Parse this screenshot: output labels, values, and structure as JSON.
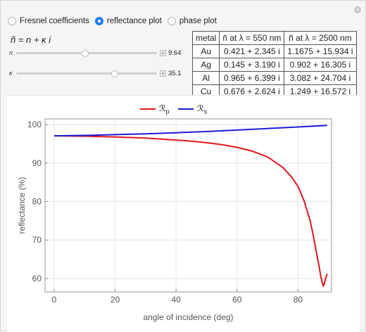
{
  "controls": {
    "radios": [
      {
        "label": "Fresnel coefficients",
        "selected": false
      },
      {
        "label": "reflectance plot",
        "selected": true
      },
      {
        "label": "phase plot",
        "selected": false
      }
    ],
    "reset_symbol": "+"
  },
  "formula": {
    "text": "ñ = n + κ i"
  },
  "sliders": [
    {
      "label": "n",
      "value_text": "9.64",
      "fraction": 0.49
    },
    {
      "label": "κ",
      "value_text": "35.1",
      "fraction": 0.7
    }
  ],
  "table": {
    "headers": [
      "metal",
      "ñ at λ = 550 nm",
      "ñ at λ = 2500 nm"
    ],
    "rows": [
      [
        "Au",
        "0.421 + 2.345 i",
        "1.1675 + 15.934 i"
      ],
      [
        "Ag",
        "0.145 + 3.190 i",
        "0.902 + 16.305 i"
      ],
      [
        "Al",
        "0.965 + 6.399 i",
        "3.082 + 24.704 i"
      ],
      [
        "Cu",
        "0.676 + 2.624 i",
        "1.249 + 16.572 i"
      ]
    ]
  },
  "legend": {
    "p": {
      "label": "ℛ",
      "sub": "p",
      "color": "#e3161d"
    },
    "s": {
      "label": "ℛ",
      "sub": "s",
      "color": "#1c1cd6"
    }
  },
  "chart_data": {
    "type": "line",
    "xlabel": "angle of incidence (deg)",
    "ylabel": "reflectance (%)",
    "xlim": [
      -3,
      91
    ],
    "ylim": [
      56.5,
      101.5
    ],
    "xticks": [
      0,
      20,
      40,
      60,
      80
    ],
    "yticks": [
      60,
      70,
      80,
      90,
      100
    ],
    "grid": true,
    "legend_position": "top-center",
    "series": [
      {
        "name": "Rp",
        "color": "#e3161d",
        "x": [
          0,
          10,
          20,
          30,
          40,
          45,
          50,
          55,
          60,
          65,
          70,
          75,
          78,
          80,
          82,
          84,
          85,
          86,
          87,
          87.5,
          88,
          88.3,
          88.6,
          88.9,
          89.3,
          89.6
        ],
        "y": [
          97.1,
          97.0,
          96.8,
          96.5,
          96.0,
          95.7,
          95.3,
          94.8,
          94.1,
          93.1,
          91.6,
          88.9,
          86.3,
          83.9,
          80.2,
          75.0,
          71.2,
          66.9,
          62.8,
          60.5,
          58.8,
          58.0,
          58.5,
          59.5,
          60.5,
          61.2
        ]
      },
      {
        "name": "Rs",
        "color": "#1c1cd6",
        "x": [
          0,
          10,
          20,
          30,
          40,
          50,
          60,
          70,
          80,
          89.6
        ],
        "y": [
          97.1,
          97.2,
          97.4,
          97.6,
          97.9,
          98.2,
          98.6,
          99.0,
          99.4,
          99.8
        ]
      }
    ]
  }
}
